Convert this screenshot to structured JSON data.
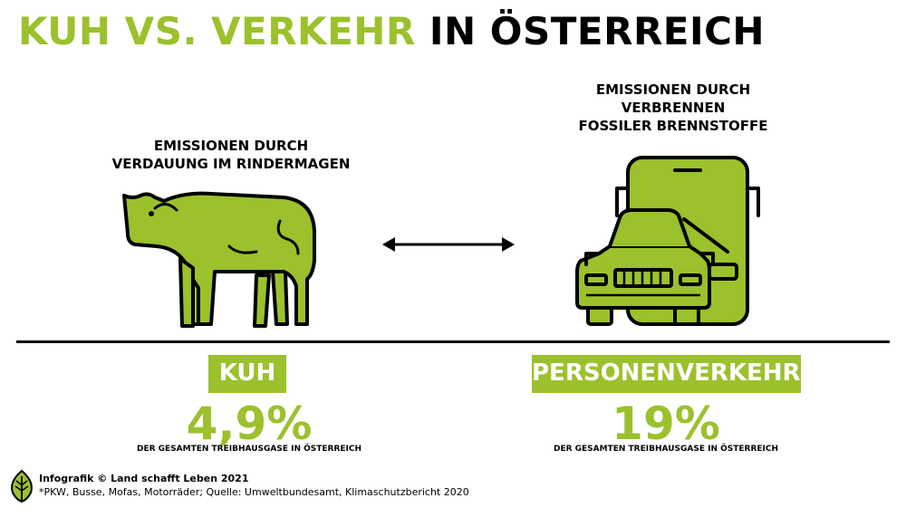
{
  "title": {
    "part_green": "KUH VS. VERKEHR",
    "part_black": "IN ÖSTERREICH"
  },
  "left": {
    "caption_line1": "EMISSIONEN DURCH",
    "caption_line2": "VERDAUUNG IM RINDERMAGEN",
    "label": "KUH",
    "value": "4,9%",
    "sub": "DER GESAMTEN TREIBHAUSGASE IN ÖSTERREICH",
    "icon": "cow-icon"
  },
  "right": {
    "caption_line1": "EMISSIONEN DURCH",
    "caption_line2": "VERBRENNEN",
    "caption_line3": "FOSSILER BRENNSTOFFE",
    "label": "PERSONENVERKEHR*",
    "value": "19%",
    "sub": "DER GESAMTEN TREIBHAUSGASE IN ÖSTERREICH",
    "icon": "car-bus-icon"
  },
  "compare_icon": "double-arrow-icon",
  "footer": {
    "credit": "Infografik © Land schafft Leben 2021",
    "source": "*PKW, Busse, Mofas, Motorräder; Quelle: Umweltbundesamt, Klimaschutzbericht 2020",
    "logo_icon": "leaf-logo-icon"
  },
  "colors": {
    "accent": "#9bc12c",
    "text": "#000000",
    "background": "#ffffff"
  }
}
